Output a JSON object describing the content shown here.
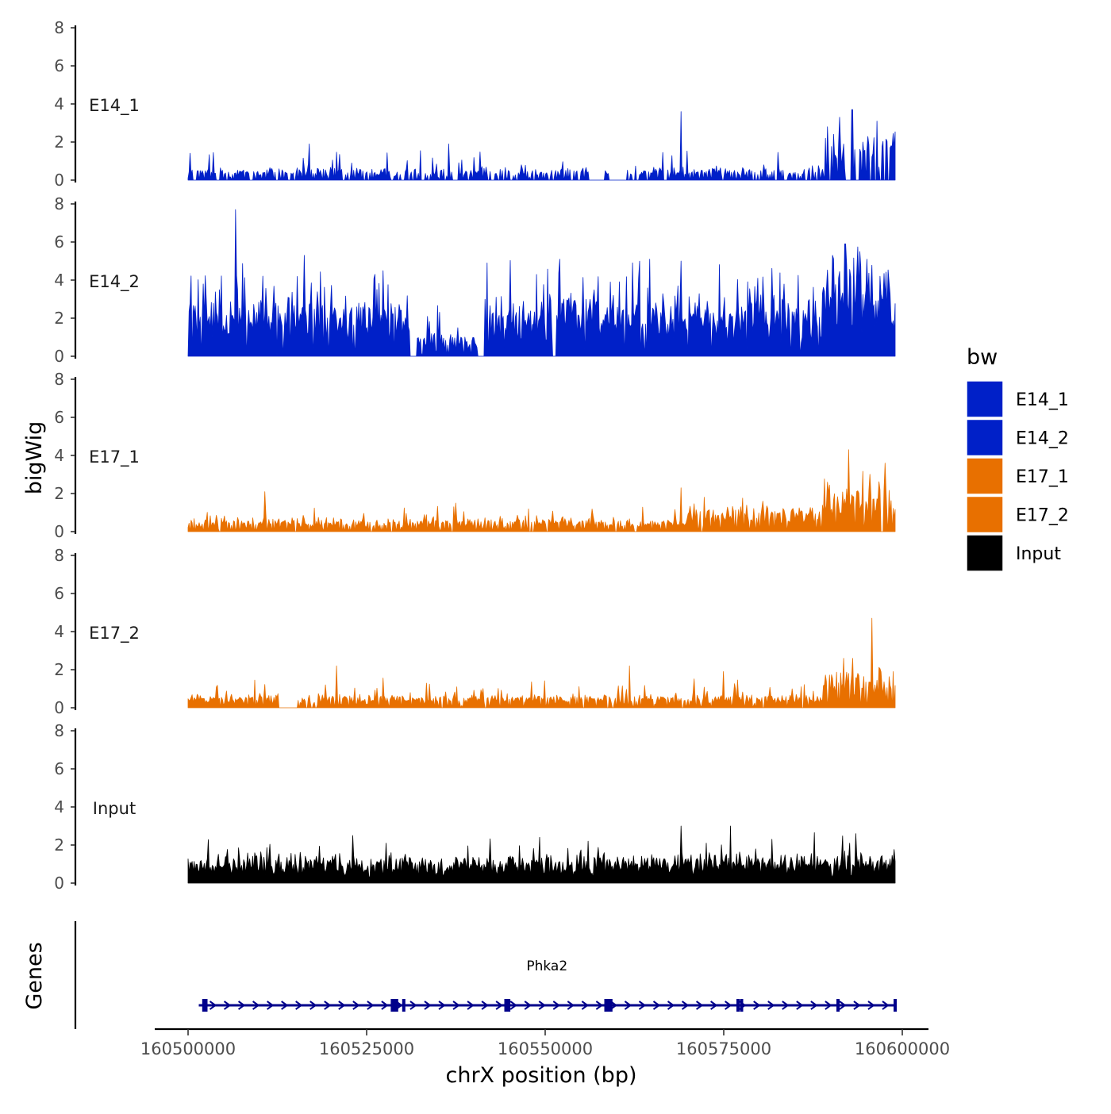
{
  "chart_data": {
    "type": "area",
    "title": "",
    "xlabel": "chrX position (bp)",
    "ylabel": "bigWig",
    "genes_label": "Genes",
    "xlim": [
      160500000,
      160600000
    ],
    "x_ticks": [
      160500000,
      160525000,
      160550000,
      160575000,
      160600000
    ],
    "x_tick_labels": [
      "160500000",
      "160525000",
      "160550000",
      "160575000",
      "160600000"
    ],
    "ylim": [
      0,
      8
    ],
    "y_ticks": [
      0,
      2,
      4,
      6,
      8
    ],
    "y_tick_labels": [
      "0",
      "2",
      "4",
      "6",
      "8"
    ],
    "data_start": 160500000,
    "data_end": 160599000,
    "legend": {
      "title": "bw",
      "position": "right",
      "entries": [
        {
          "label": "E14_1",
          "color": "#0020C8"
        },
        {
          "label": "E14_2",
          "color": "#0020C8"
        },
        {
          "label": "E17_1",
          "color": "#E87000"
        },
        {
          "label": "E17_2",
          "color": "#E87000"
        },
        {
          "label": "Input",
          "color": "#000000"
        }
      ]
    },
    "series": [
      {
        "name": "E14_1",
        "color": "#0020C8",
        "baseline": 0.3,
        "noise": 0.5,
        "spike_prob": 0.1,
        "spike_height": 1.2,
        "zero_prob": 0.35,
        "gaps": [
          [
            160556200,
            160558300
          ],
          [
            160559000,
            160561200
          ]
        ],
        "peaks": [
          {
            "x": 160517000,
            "y": 1.9
          },
          {
            "x": 160536500,
            "y": 1.9
          },
          {
            "x": 160569000,
            "y": 3.6
          },
          {
            "x": 160591200,
            "y": 3.3
          },
          {
            "x": 160593000,
            "y": 3.7
          },
          {
            "x": 160596500,
            "y": 3.1
          },
          {
            "x": 160589500,
            "y": 2.8
          }
        ],
        "regions": [
          {
            "start": 160589000,
            "end": 160599000,
            "level": 1.6
          }
        ]
      },
      {
        "name": "E14_2",
        "color": "#0020C8",
        "baseline": 1.5,
        "noise": 1.2,
        "spike_prob": 0.22,
        "spike_height": 2.0,
        "zero_prob": 0.05,
        "gaps": [
          [
            160531000,
            160532000
          ],
          [
            160540500,
            160541500
          ],
          [
            160551000,
            160551600
          ]
        ],
        "peaks": [
          {
            "x": 160506700,
            "y": 7.7
          },
          {
            "x": 160516300,
            "y": 5.3
          },
          {
            "x": 160526200,
            "y": 4.3
          },
          {
            "x": 160552000,
            "y": 5.1
          },
          {
            "x": 160569000,
            "y": 5.0
          },
          {
            "x": 160590200,
            "y": 5.3
          },
          {
            "x": 160592000,
            "y": 5.9
          },
          {
            "x": 160594000,
            "y": 5.5
          }
        ],
        "regions": [
          {
            "start": 160531000,
            "end": 160541500,
            "level": 0.4
          },
          {
            "start": 160589000,
            "end": 160599000,
            "level": 2.5
          }
        ]
      },
      {
        "name": "E17_1",
        "color": "#E87000",
        "baseline": 0.35,
        "noise": 0.45,
        "spike_prob": 0.12,
        "spike_height": 0.8,
        "zero_prob": 0.15,
        "gaps": [],
        "peaks": [
          {
            "x": 160510700,
            "y": 2.1
          },
          {
            "x": 160537500,
            "y": 1.5
          },
          {
            "x": 160569000,
            "y": 2.3
          },
          {
            "x": 160592500,
            "y": 4.3
          },
          {
            "x": 160597600,
            "y": 3.6
          }
        ],
        "regions": [
          {
            "start": 160570000,
            "end": 160589000,
            "level": 0.7
          },
          {
            "start": 160589000,
            "end": 160599000,
            "level": 1.6
          }
        ]
      },
      {
        "name": "E17_2",
        "color": "#E87000",
        "baseline": 0.35,
        "noise": 0.45,
        "spike_prob": 0.1,
        "spike_height": 0.9,
        "zero_prob": 0.15,
        "gaps": [
          [
            160512800,
            160515200
          ]
        ],
        "peaks": [
          {
            "x": 160520800,
            "y": 2.2
          },
          {
            "x": 160561800,
            "y": 2.2
          },
          {
            "x": 160575000,
            "y": 1.9
          },
          {
            "x": 160591800,
            "y": 2.6
          },
          {
            "x": 160595800,
            "y": 4.7
          }
        ],
        "regions": [
          {
            "start": 160589000,
            "end": 160599000,
            "level": 1.3
          }
        ]
      },
      {
        "name": "Input",
        "color": "#000000",
        "baseline": 0.7,
        "noise": 0.7,
        "spike_prob": 0.08,
        "spike_height": 0.9,
        "zero_prob": 0.0,
        "gaps": [],
        "peaks": [
          {
            "x": 160523000,
            "y": 2.5
          },
          {
            "x": 160569000,
            "y": 3.0
          },
          {
            "x": 160576000,
            "y": 3.0
          },
          {
            "x": 160593500,
            "y": 2.6
          },
          {
            "x": 160556000,
            "y": 2.2
          }
        ],
        "regions": []
      }
    ],
    "genes": [
      {
        "name": "Phka2",
        "start": 160501500,
        "end": 160599000,
        "strand": "+",
        "color": "#00008B",
        "exons": [
          160502200,
          160502500,
          160528600,
          160528900,
          160529200,
          160530200,
          160544500,
          160544900,
          160558500,
          160558800,
          160559200,
          160577000,
          160577500,
          160591000,
          160599000
        ]
      }
    ]
  }
}
